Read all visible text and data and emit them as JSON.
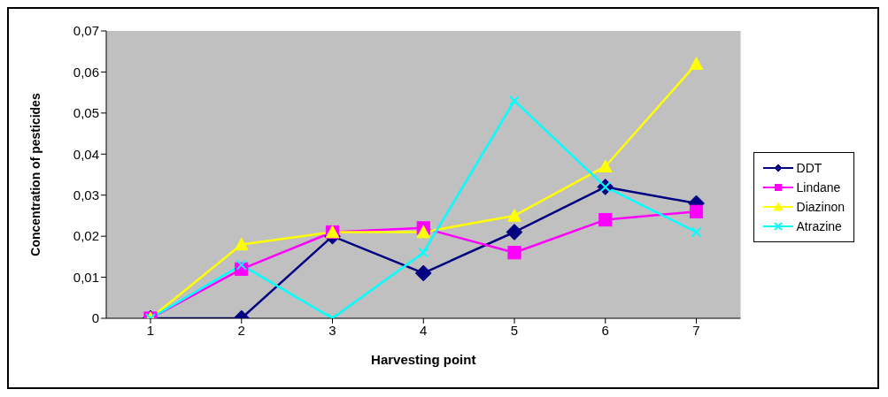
{
  "chart_data": {
    "type": "line",
    "xlabel": "Harvesting point",
    "ylabel": "Concentration of pesticides",
    "categories": [
      "1",
      "2",
      "3",
      "4",
      "5",
      "6",
      "7"
    ],
    "series": [
      {
        "name": "DDT",
        "color": "#000080",
        "marker": "diamond",
        "values": [
          0,
          0,
          0.02,
          0.011,
          0.021,
          0.032,
          0.028
        ]
      },
      {
        "name": "Lindane",
        "color": "#ff00ff",
        "marker": "square",
        "values": [
          0,
          0.012,
          0.021,
          0.022,
          0.016,
          0.024,
          0.026
        ]
      },
      {
        "name": "Diazinon",
        "color": "#ffff00",
        "marker": "triangle",
        "values": [
          0,
          0.018,
          0.021,
          0.021,
          0.025,
          0.037,
          0.062
        ]
      },
      {
        "name": "Atrazine",
        "color": "#00ffff",
        "marker": "cross",
        "values": [
          0,
          0.013,
          0,
          0.016,
          0.053,
          0.032,
          0.021
        ]
      }
    ],
    "ylim": [
      0,
      0.07
    ],
    "yticks": [
      0,
      {
        "value": 0.01,
        "label": "0,01"
      },
      {
        "value": 0.02,
        "label": "0,02"
      },
      {
        "value": 0.03,
        "label": "0,03"
      },
      {
        "value": 0.04,
        "label": "0,04"
      },
      {
        "value": 0.05,
        "label": "0,05"
      },
      {
        "value": 0.06,
        "label": "0,06"
      },
      {
        "value": 0.07,
        "label": "0,07"
      }
    ],
    "grid": false,
    "legend": "right",
    "line_style": "solid"
  }
}
